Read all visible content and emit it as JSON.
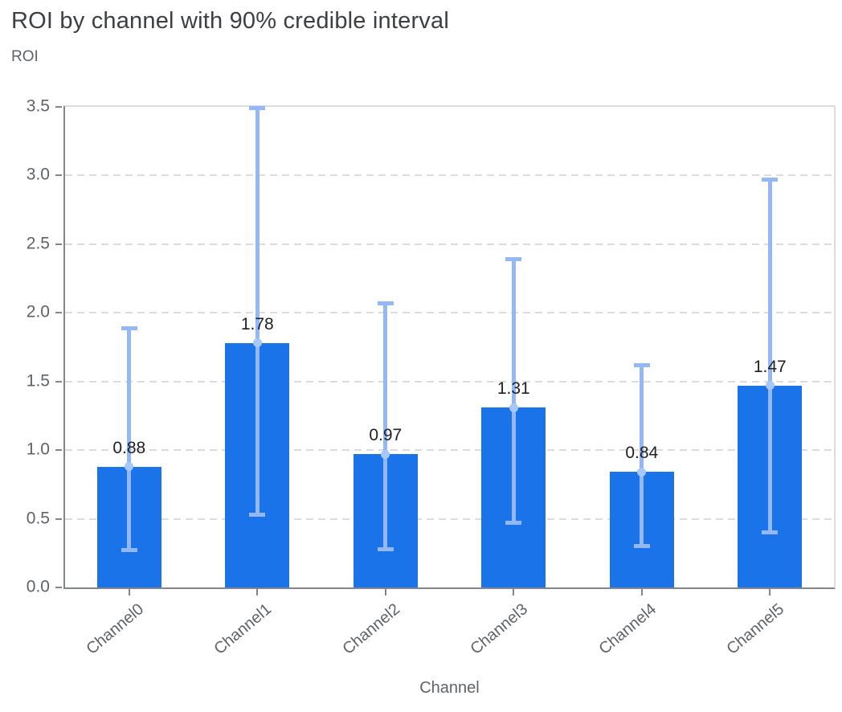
{
  "chart_data": {
    "type": "bar",
    "title": "ROI by channel with 90% credible interval",
    "ylabel": "ROI",
    "xlabel": "Channel",
    "categories": [
      "Channel0",
      "Channel1",
      "Channel2",
      "Channel3",
      "Channel4",
      "Channel5"
    ],
    "values": [
      0.88,
      1.78,
      0.97,
      1.31,
      0.84,
      1.47
    ],
    "value_labels": [
      "0.88",
      "1.78",
      "0.97",
      "1.31",
      "0.84",
      "1.47"
    ],
    "error_low": [
      0.27,
      0.53,
      0.28,
      0.47,
      0.3,
      0.4
    ],
    "error_high": [
      1.89,
      3.49,
      2.07,
      2.39,
      1.62,
      2.97
    ],
    "ylim": [
      0,
      3.5
    ],
    "yticks": [
      0,
      0.5,
      1,
      1.5,
      2,
      2.5,
      3,
      3.5
    ],
    "ytick_labels": [
      "0.0",
      "0.5",
      "1.0",
      "1.5",
      "2.0",
      "2.5",
      "3.0",
      "3.5"
    ],
    "grid": "horizontal dashed gridlines at each 0.5 step; solid light top and right plot borders",
    "legend": "none",
    "annotations": "error bars show 90% credible interval with light-blue mean marker dot at bar top"
  },
  "colors": {
    "bar": "#1a73e8",
    "error_bar": "#94b8f5",
    "mean_marker": "#a8c7fa",
    "title_text": "#3c4043",
    "axis_text": "#5f6368",
    "value_label_text": "#202124",
    "gridline": "#dadce0",
    "axis_line": "#80868b",
    "background": "#ffffff"
  }
}
